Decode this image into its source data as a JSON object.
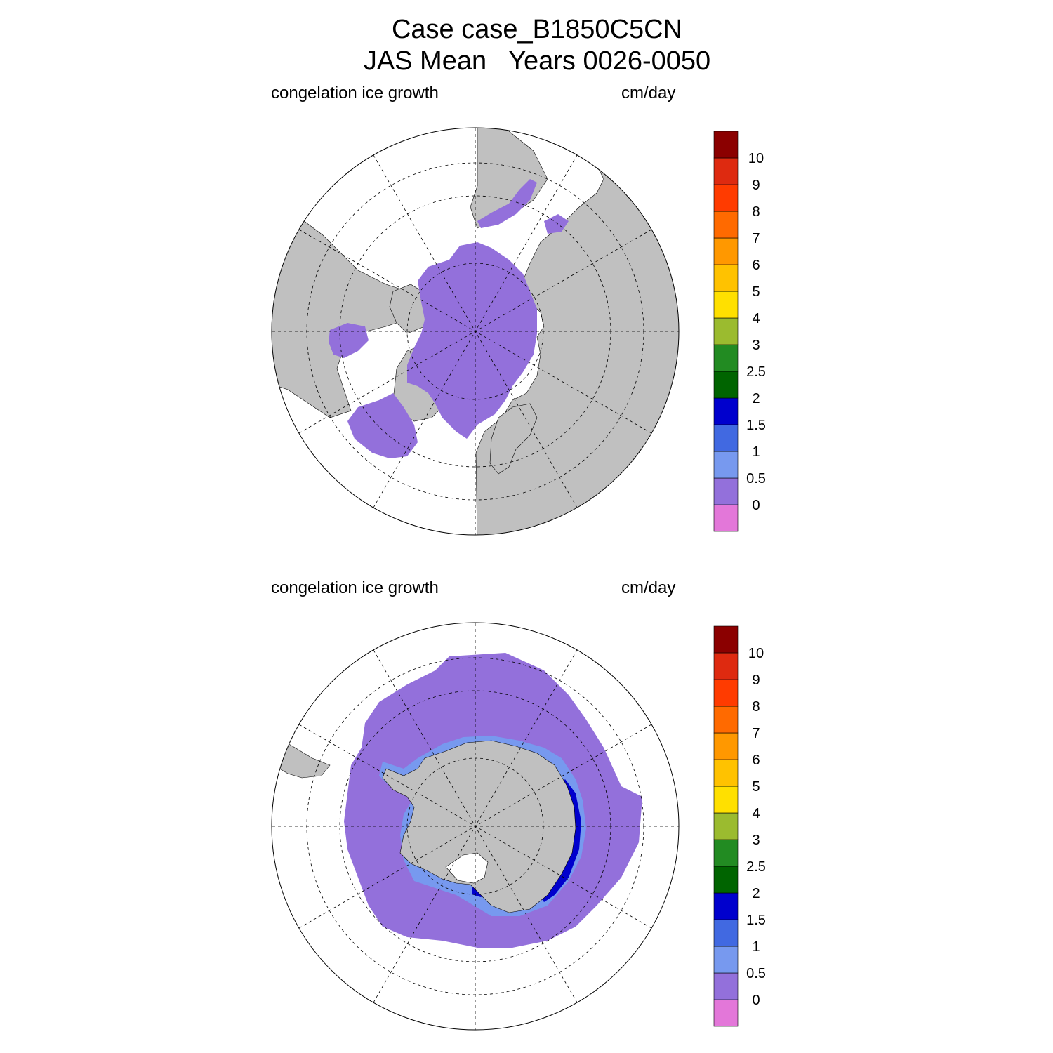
{
  "title": {
    "line1": "Case case_B1850C5CN",
    "line2": "JAS Mean   Years 0026-0050"
  },
  "colorbar": {
    "colors": [
      "#e377d9",
      "#9370db",
      "#7799ef",
      "#4169e1",
      "#0000cd",
      "#006400",
      "#228b22",
      "#9bbb2f",
      "#ffe000",
      "#ffc200",
      "#ff9800",
      "#ff6a00",
      "#ff3b00",
      "#de2a10",
      "#8b0000"
    ],
    "labels": [
      "0",
      "0.5",
      "1",
      "1.5",
      "2",
      "2.5",
      "3",
      "4",
      "5",
      "6",
      "7",
      "8",
      "9",
      "10"
    ]
  },
  "colors": {
    "land": "#c0c0c0",
    "ice_growth_low": "#9370db",
    "ice_growth_mid": "#7799ef",
    "ice_growth_high": "#0000cd",
    "ocean": "#ffffff"
  },
  "panels": [
    {
      "id": "north",
      "hemisphere": "Northern Hemisphere polar stereographic",
      "left_label": "congelation ice growth",
      "right_label": "cm/day",
      "dominant_value_range": "0 – 0.5 cm/day"
    },
    {
      "id": "south",
      "hemisphere": "Southern Hemisphere polar stereographic",
      "left_label": "congelation ice growth",
      "right_label": "cm/day",
      "dominant_value_range": "0 – 0.5 cm/day, up to 2 cm/day along Antarctic coast"
    }
  ]
}
